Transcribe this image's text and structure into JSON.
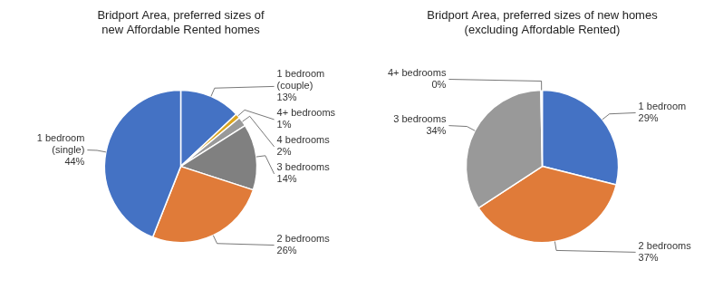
{
  "chart_data": [
    {
      "type": "pie",
      "title": "Bridport Area, preferred sizes of\nnew Affordable Rented homes",
      "categories": [
        "1 bedroom\n(couple)",
        "4+ bedrooms",
        "4 bedrooms",
        "3 bedrooms",
        "2 bedrooms",
        "1 bedroom\n(single)"
      ],
      "values": [
        13,
        1,
        2,
        14,
        26,
        44
      ],
      "value_labels": [
        "13%",
        "1%",
        "2%",
        "14%",
        "26%",
        "44%"
      ],
      "data_labels": true,
      "colors": [
        "#4472C4",
        "#DAA520",
        "#999999",
        "#808080",
        "#E07B39",
        "#4472C4"
      ]
    },
    {
      "type": "pie",
      "title": "Bridport Area, preferred sizes of new homes\n(excluding Affordable Rented)",
      "categories": [
        "1 bedroom",
        "2 bedrooms",
        "3 bedrooms",
        "4+ bedrooms"
      ],
      "values": [
        29,
        37,
        34,
        0.3
      ],
      "value_labels": [
        "29%",
        "37%",
        "34%",
        "0%"
      ],
      "data_labels": true,
      "colors": [
        "#4472C4",
        "#E07B39",
        "#999999",
        "#CCCCCC"
      ]
    }
  ]
}
